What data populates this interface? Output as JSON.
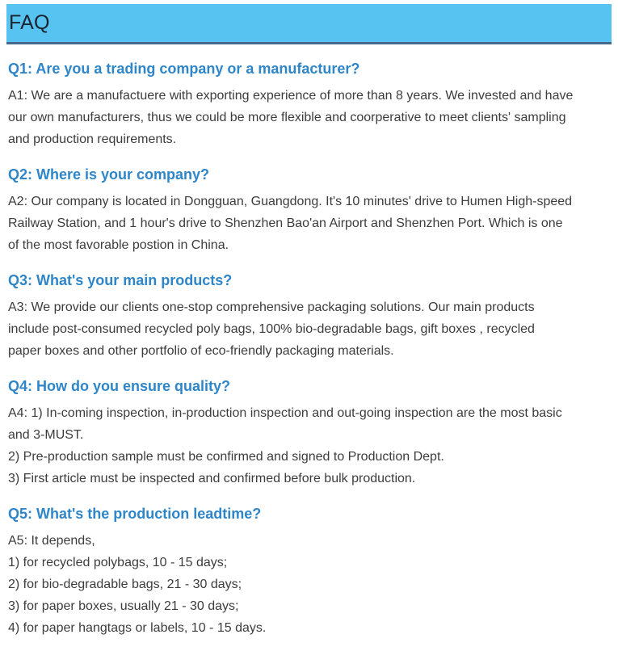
{
  "header": {
    "title": "FAQ"
  },
  "colors": {
    "header_bg": "#57C3F0",
    "header_border": "#47698C",
    "header_text": "#1A2230",
    "question": "#2E86C9",
    "body_text": "#3C3C3C"
  },
  "faq": {
    "items": [
      {
        "question": "Q1: Are you a trading company or a manufacturer?",
        "answer_lines": [
          "A1: We are a manufactuere with exporting experience of more than 8 years. We invested and have",
          "our own manufacturers, thus we could be more flexible and coorperative to meet clients' sampling",
          "and production requirements."
        ]
      },
      {
        "question": "Q2: Where is your company?",
        "answer_lines": [
          "A2: Our company is located in Dongguan, Guangdong. It's 10 minutes' drive to Humen High-speed",
          "Railway Station, and 1 hour's drive to Shenzhen Bao'an Airport and Shenzhen Port. Which is one",
          "of the most favorable postion in China."
        ]
      },
      {
        "question": "Q3: What's your main products?",
        "answer_lines": [
          "A3: We provide our clients one-stop comprehensive packaging solutions. Our main products",
          "include post-consumed recycled poly bags, 100% bio-degradable bags, gift boxes , recycled",
          "paper boxes and other portfolio of eco-friendly packaging materials."
        ]
      },
      {
        "question": "Q4: How do you ensure quality?",
        "answer_lines": [
          "A4: 1) In-coming inspection, in-production inspection and out-going inspection are the most basic",
          "and 3-MUST.",
          "2) Pre-production sample must be confirmed and signed to Production Dept.",
          "3) First article must be inspected and confirmed before bulk production."
        ]
      },
      {
        "question": "Q5: What's the production leadtime?",
        "answer_lines": [
          "A5: It depends,",
          "1) for recycled polybags, 10 - 15 days;",
          "2) for bio-degradable bags, 21 - 30 days;",
          "3) for paper boxes, usually 21 - 30 days;",
          "4) for paper hangtags or labels, 10 - 15 days."
        ]
      }
    ]
  }
}
